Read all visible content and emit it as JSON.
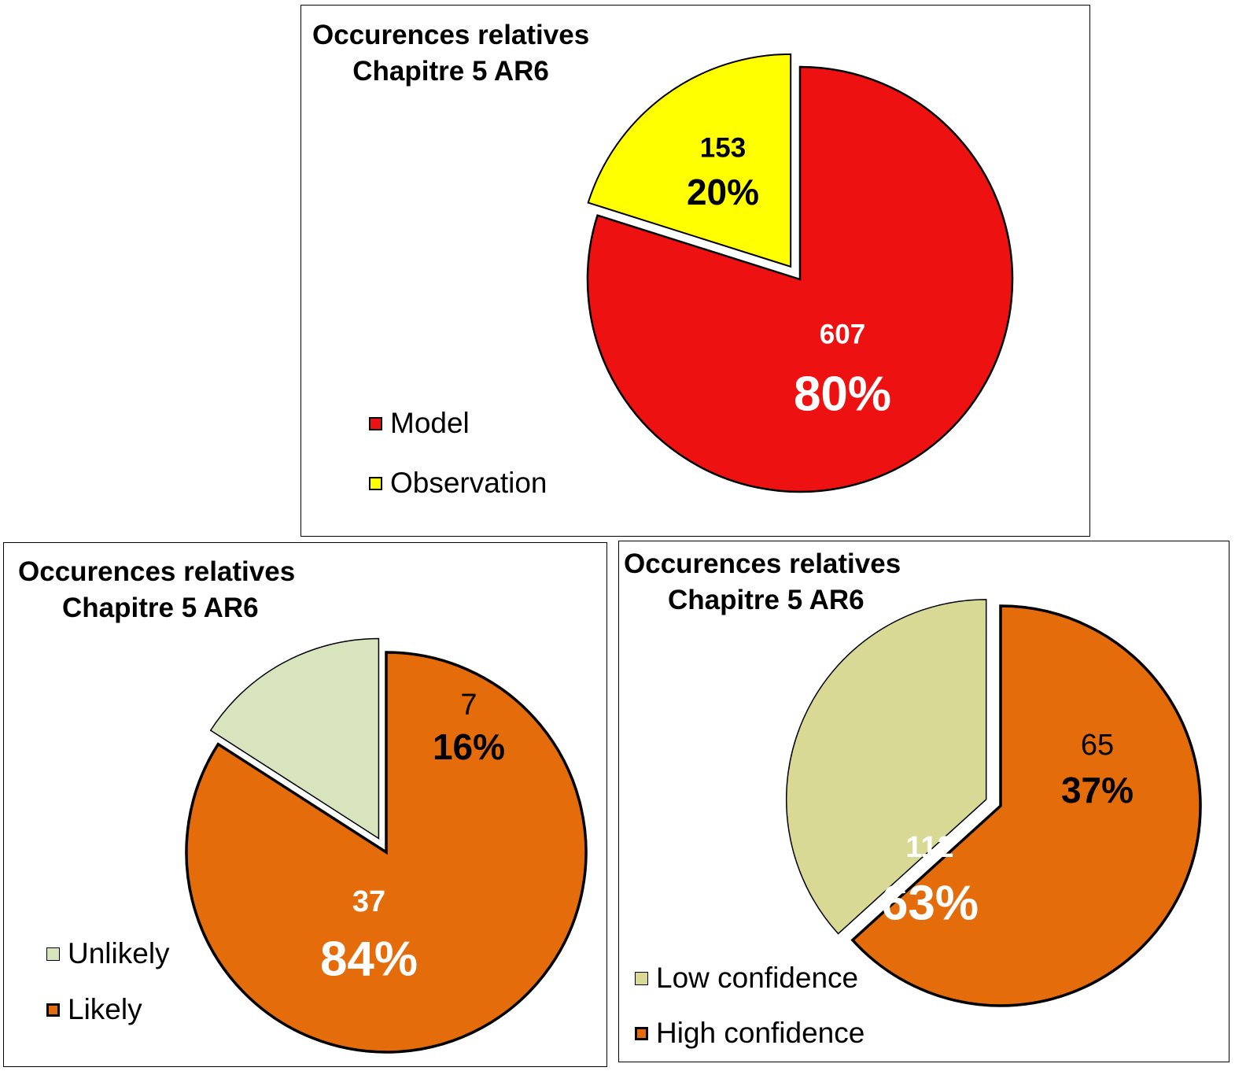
{
  "chart_data": [
    {
      "type": "pie",
      "title": [
        "Occurences relatives",
        "Chapitre 5 AR6"
      ],
      "slices": [
        {
          "label": "Model",
          "value": 607,
          "percent_label": "80%",
          "color": "#ee1111",
          "label_color": "#ffffff"
        },
        {
          "label": "Observation",
          "value": 153,
          "percent_label": "20%",
          "color": "#ffff00",
          "label_color": "#000000"
        }
      ],
      "legend_position": "bottom-left"
    },
    {
      "type": "pie",
      "title": [
        "Occurences relatives",
        "Chapitre 5  AR6"
      ],
      "slices": [
        {
          "label": "Likely",
          "value": 37,
          "percent_label": "84%",
          "color": "#e46c0a",
          "label_color": "#ffffff"
        },
        {
          "label": "Unlikely",
          "value": 7,
          "percent_label": "16%",
          "color": "#d7e4bd",
          "label_color": "#000000"
        }
      ],
      "legend_order": [
        "Unlikely",
        "Likely"
      ],
      "legend_position": "bottom-left"
    },
    {
      "type": "pie",
      "title": [
        "Occurences relatives",
        "Chapitre 5  AR6"
      ],
      "slices": [
        {
          "label": "High confidence",
          "value": 112,
          "percent_label": "63%",
          "color": "#e46c0a",
          "label_color": "#ffffff"
        },
        {
          "label": "Low confidence",
          "value": 65,
          "percent_label": "37%",
          "color": "#d7d995",
          "label_color": "#000000"
        }
      ],
      "legend_order": [
        "Low confidence",
        "High confidence"
      ],
      "legend_position": "bottom-left"
    }
  ]
}
